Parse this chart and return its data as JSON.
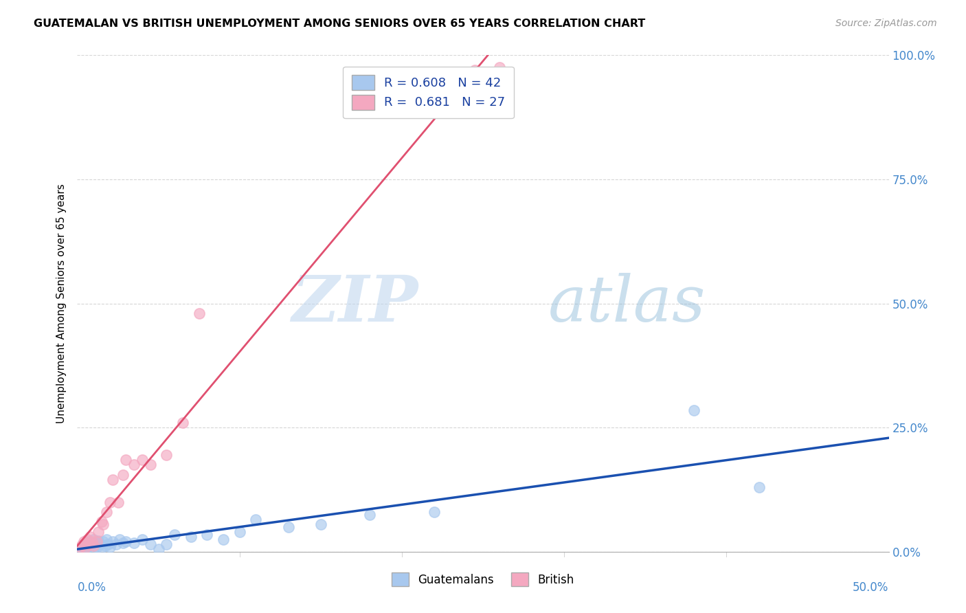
{
  "title": "GUATEMALAN VS BRITISH UNEMPLOYMENT AMONG SENIORS OVER 65 YEARS CORRELATION CHART",
  "source": "Source: ZipAtlas.com",
  "ylabel": "Unemployment Among Seniors over 65 years",
  "yticks": [
    0.0,
    0.25,
    0.5,
    0.75,
    1.0
  ],
  "ytick_labels": [
    "0.0%",
    "25.0%",
    "50.0%",
    "75.0%",
    "100.0%"
  ],
  "xlim": [
    0.0,
    0.5
  ],
  "ylim": [
    0.0,
    1.0
  ],
  "R_guatemalan": 0.608,
  "N_guatemalan": 42,
  "R_british": 0.681,
  "N_british": 27,
  "blue_color": "#A8C8EE",
  "pink_color": "#F4A8C0",
  "blue_line_color": "#1A50B0",
  "pink_line_color": "#E05070",
  "legend_label_guatemalan": "Guatemalans",
  "legend_label_british": "British",
  "watermark_zip": "ZIP",
  "watermark_atlas": "atlas",
  "guatemalan_x": [
    0.002,
    0.003,
    0.004,
    0.005,
    0.006,
    0.007,
    0.008,
    0.009,
    0.01,
    0.01,
    0.011,
    0.012,
    0.013,
    0.014,
    0.015,
    0.016,
    0.017,
    0.018,
    0.019,
    0.02,
    0.022,
    0.024,
    0.026,
    0.028,
    0.03,
    0.035,
    0.04,
    0.045,
    0.05,
    0.055,
    0.06,
    0.07,
    0.08,
    0.09,
    0.1,
    0.11,
    0.13,
    0.15,
    0.18,
    0.22,
    0.38,
    0.42
  ],
  "guatemalan_y": [
    0.005,
    0.01,
    0.008,
    0.015,
    0.01,
    0.02,
    0.012,
    0.015,
    0.005,
    0.025,
    0.018,
    0.01,
    0.022,
    0.015,
    0.008,
    0.02,
    0.012,
    0.025,
    0.015,
    0.01,
    0.02,
    0.015,
    0.025,
    0.018,
    0.02,
    0.018,
    0.025,
    0.015,
    0.005,
    0.015,
    0.035,
    0.03,
    0.035,
    0.025,
    0.04,
    0.065,
    0.05,
    0.055,
    0.075,
    0.08,
    0.285,
    0.13
  ],
  "british_x": [
    0.002,
    0.003,
    0.004,
    0.005,
    0.006,
    0.007,
    0.008,
    0.009,
    0.01,
    0.012,
    0.013,
    0.015,
    0.016,
    0.018,
    0.02,
    0.022,
    0.025,
    0.028,
    0.03,
    0.035,
    0.04,
    0.045,
    0.055,
    0.065,
    0.075,
    0.245,
    0.26
  ],
  "british_y": [
    0.01,
    0.015,
    0.02,
    0.008,
    0.025,
    0.015,
    0.03,
    0.02,
    0.012,
    0.02,
    0.04,
    0.06,
    0.055,
    0.08,
    0.1,
    0.145,
    0.1,
    0.155,
    0.185,
    0.175,
    0.185,
    0.175,
    0.195,
    0.26,
    0.48,
    0.97,
    0.975
  ]
}
